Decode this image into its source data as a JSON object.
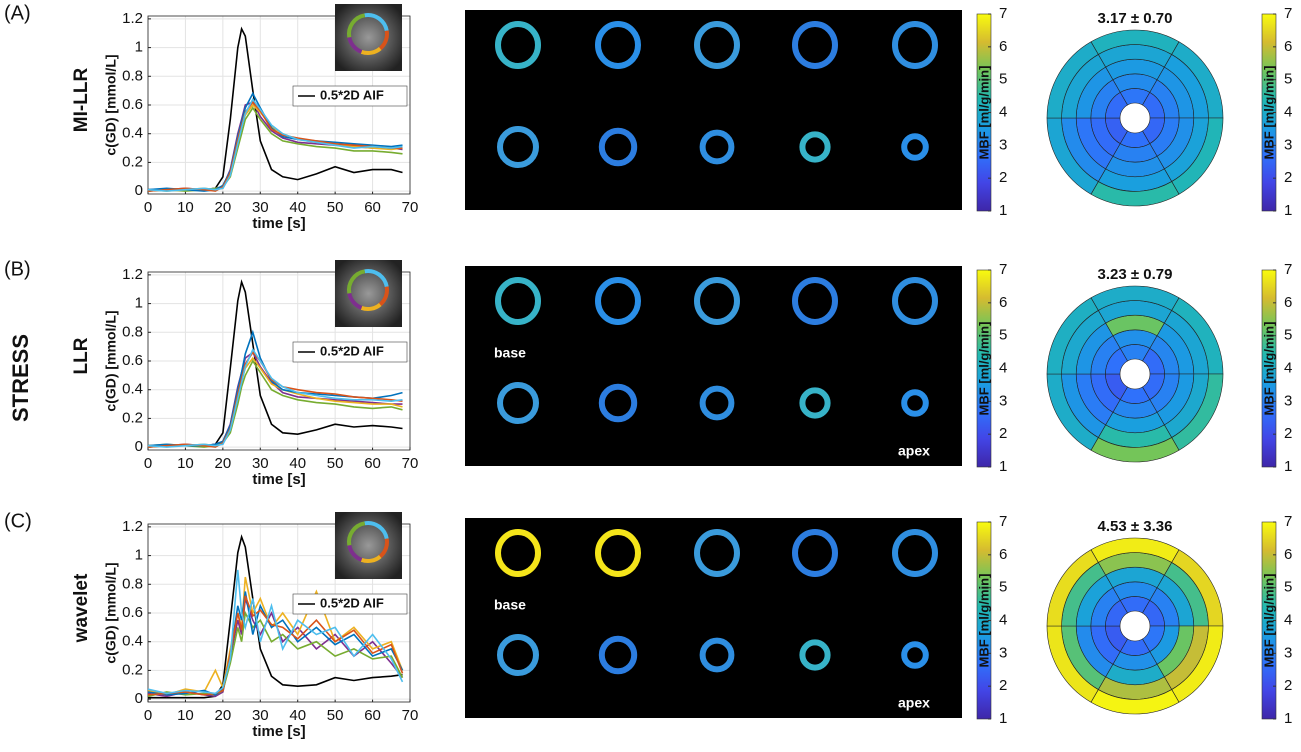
{
  "group_label": "STRESS",
  "colormap": [
    "#3e26a8",
    "#4245e6",
    "#2f72fb",
    "#1a9ee0",
    "#22b9b0",
    "#72c55a",
    "#d5bb30",
    "#f9fb0e"
  ],
  "chart_data": [
    {
      "type": "line",
      "panel_label": "(A)",
      "method_label": "MI-LLR",
      "xlabel": "time [s]",
      "ylabel": "c(GD) [mmol/L]",
      "xlim": [
        0,
        70
      ],
      "ylim": [
        -0.02,
        1.22
      ],
      "xticks": [
        0,
        10,
        20,
        30,
        40,
        50,
        60,
        70
      ],
      "yticks": [
        0,
        0.2,
        0.4,
        0.6,
        0.8,
        1,
        1.2
      ],
      "grid": true,
      "legend": "upper right",
      "x": [
        0,
        5,
        10,
        15,
        18,
        20,
        22,
        24,
        25,
        26,
        28,
        30,
        33,
        36,
        40,
        45,
        50,
        55,
        60,
        65,
        68
      ],
      "series": [
        {
          "name": "0.5*2D AIF",
          "color": "#000000",
          "values": [
            0.01,
            0.01,
            0.01,
            0.01,
            0.02,
            0.1,
            0.5,
            1.0,
            1.13,
            1.08,
            0.7,
            0.35,
            0.15,
            0.1,
            0.08,
            0.12,
            0.17,
            0.13,
            0.15,
            0.15,
            0.13
          ]
        },
        {
          "color": "#7e2f8e",
          "values": [
            0,
            0.01,
            0.02,
            0.01,
            0.02,
            0.03,
            0.15,
            0.4,
            0.5,
            0.6,
            0.62,
            0.52,
            0.42,
            0.37,
            0.34,
            0.33,
            0.32,
            0.31,
            0.3,
            0.3,
            0.29
          ]
        },
        {
          "color": "#edb120",
          "values": [
            0.01,
            0,
            0.01,
            0.02,
            0.01,
            0.02,
            0.12,
            0.35,
            0.45,
            0.53,
            0.6,
            0.55,
            0.45,
            0.4,
            0.36,
            0.34,
            0.33,
            0.31,
            0.3,
            0.29,
            0.3
          ]
        },
        {
          "color": "#77ac30",
          "values": [
            0,
            0.01,
            0,
            0.01,
            0.02,
            0.03,
            0.1,
            0.3,
            0.4,
            0.5,
            0.58,
            0.5,
            0.4,
            0.35,
            0.33,
            0.31,
            0.3,
            0.28,
            0.28,
            0.27,
            0.26
          ]
        },
        {
          "color": "#0072bd",
          "values": [
            0.01,
            0.02,
            0.01,
            0,
            0.01,
            0.04,
            0.14,
            0.38,
            0.48,
            0.58,
            0.68,
            0.58,
            0.44,
            0.38,
            0.36,
            0.35,
            0.34,
            0.33,
            0.32,
            0.31,
            0.32
          ]
        },
        {
          "color": "#d95319",
          "values": [
            0,
            0.01,
            0.02,
            0.01,
            0,
            0.03,
            0.13,
            0.36,
            0.46,
            0.55,
            0.62,
            0.56,
            0.43,
            0.39,
            0.37,
            0.35,
            0.33,
            0.32,
            0.31,
            0.3,
            0.3
          ]
        },
        {
          "color": "#4dbeee",
          "values": [
            0.01,
            0,
            0.01,
            0.02,
            0.01,
            0.02,
            0.11,
            0.33,
            0.44,
            0.54,
            0.64,
            0.57,
            0.46,
            0.4,
            0.36,
            0.34,
            0.32,
            0.3,
            0.31,
            0.3,
            0.31
          ]
        }
      ]
    },
    {
      "type": "bullseye",
      "title": "3.17 ± 0.70",
      "clim": [
        1,
        7
      ],
      "cticks": [
        1,
        2,
        3,
        4,
        5,
        6,
        7
      ],
      "clabel": "MBF [ml/g/min]",
      "values": [
        [
          2.8,
          3.2,
          3.5,
          3.8,
          4.2
        ],
        [
          2.6,
          3.0,
          3.4,
          3.6,
          4.0
        ],
        [
          2.5,
          2.9,
          3.3,
          3.7,
          4.3
        ],
        [
          2.7,
          3.0,
          3.3,
          3.6,
          4.5
        ],
        [
          2.4,
          2.6,
          2.8,
          3.2,
          3.8
        ],
        [
          2.6,
          3.0,
          3.4,
          3.8,
          4.0
        ]
      ]
    },
    {
      "type": "line",
      "panel_label": "(B)",
      "method_label": "LLR",
      "xlabel": "time [s]",
      "ylabel": "c(GD) [mmol/L]",
      "xlim": [
        0,
        70
      ],
      "ylim": [
        -0.02,
        1.22
      ],
      "xticks": [
        0,
        10,
        20,
        30,
        40,
        50,
        60,
        70
      ],
      "yticks": [
        0,
        0.2,
        0.4,
        0.6,
        0.8,
        1,
        1.2
      ],
      "grid": true,
      "legend": "upper right",
      "x": [
        0,
        5,
        10,
        15,
        18,
        20,
        22,
        24,
        25,
        26,
        28,
        30,
        33,
        36,
        40,
        45,
        50,
        55,
        60,
        65,
        68
      ],
      "series": [
        {
          "name": "0.5*2D AIF",
          "color": "#000000",
          "values": [
            0.01,
            0.01,
            0.01,
            0.01,
            0.02,
            0.1,
            0.55,
            1.02,
            1.15,
            1.08,
            0.72,
            0.36,
            0.16,
            0.1,
            0.09,
            0.12,
            0.16,
            0.14,
            0.15,
            0.14,
            0.13
          ]
        },
        {
          "color": "#7e2f8e",
          "values": [
            0,
            0.01,
            0.02,
            0.01,
            0.02,
            0.04,
            0.16,
            0.42,
            0.52,
            0.62,
            0.66,
            0.56,
            0.45,
            0.38,
            0.35,
            0.34,
            0.33,
            0.32,
            0.31,
            0.3,
            0.3
          ]
        },
        {
          "color": "#edb120",
          "values": [
            0.01,
            0.02,
            0.01,
            0.02,
            0.01,
            0.03,
            0.12,
            0.36,
            0.46,
            0.55,
            0.62,
            0.55,
            0.44,
            0.4,
            0.37,
            0.34,
            0.32,
            0.31,
            0.3,
            0.3,
            0.28
          ]
        },
        {
          "color": "#77ac30",
          "values": [
            0,
            0.01,
            0.01,
            0,
            0.01,
            0.03,
            0.1,
            0.3,
            0.42,
            0.5,
            0.6,
            0.52,
            0.4,
            0.36,
            0.33,
            0.31,
            0.3,
            0.28,
            0.27,
            0.28,
            0.26
          ]
        },
        {
          "color": "#0072bd",
          "values": [
            0.01,
            0.02,
            0.01,
            0.01,
            0.02,
            0.04,
            0.15,
            0.4,
            0.52,
            0.65,
            0.8,
            0.62,
            0.46,
            0.4,
            0.38,
            0.37,
            0.36,
            0.35,
            0.34,
            0.36,
            0.38
          ]
        },
        {
          "color": "#d95319",
          "values": [
            0,
            0.01,
            0.02,
            0.01,
            0,
            0.03,
            0.13,
            0.37,
            0.48,
            0.58,
            0.66,
            0.6,
            0.47,
            0.42,
            0.4,
            0.38,
            0.37,
            0.35,
            0.34,
            0.33,
            0.32
          ]
        },
        {
          "color": "#4dbeee",
          "values": [
            0.01,
            0,
            0.01,
            0.02,
            0.01,
            0.02,
            0.12,
            0.34,
            0.45,
            0.56,
            0.68,
            0.6,
            0.48,
            0.42,
            0.38,
            0.36,
            0.34,
            0.33,
            0.33,
            0.32,
            0.33
          ]
        }
      ]
    },
    {
      "type": "bullseye",
      "title": "3.23 ± 0.79",
      "clim": [
        1,
        7
      ],
      "cticks": [
        1,
        2,
        3,
        4,
        5,
        6,
        7
      ],
      "clabel": "MBF [ml/g/min]",
      "values": [
        [
          3.0,
          3.3,
          5.2,
          3.8,
          4.0
        ],
        [
          2.6,
          3.1,
          3.5,
          3.8,
          4.2
        ],
        [
          2.6,
          3.0,
          3.5,
          3.9,
          4.6
        ],
        [
          2.7,
          3.1,
          3.6,
          4.5,
          5.3
        ],
        [
          2.3,
          2.6,
          2.9,
          3.4,
          4.0
        ],
        [
          2.7,
          3.0,
          3.4,
          3.9,
          4.1
        ]
      ]
    },
    {
      "type": "line",
      "panel_label": "(C)",
      "method_label": "wavelet",
      "xlabel": "time [s]",
      "ylabel": "c(GD) [mmol/L]",
      "xlim": [
        0,
        70
      ],
      "ylim": [
        -0.02,
        1.22
      ],
      "xticks": [
        0,
        10,
        20,
        30,
        40,
        50,
        60,
        70
      ],
      "yticks": [
        0,
        0.2,
        0.4,
        0.6,
        0.8,
        1,
        1.2
      ],
      "grid": true,
      "legend": "upper right",
      "x": [
        0,
        5,
        10,
        15,
        18,
        20,
        22,
        24,
        25,
        26,
        28,
        30,
        33,
        36,
        40,
        45,
        50,
        55,
        60,
        65,
        68
      ],
      "series": [
        {
          "name": "0.5*2D AIF",
          "color": "#000000",
          "values": [
            0.01,
            0.01,
            0.01,
            0.01,
            0.02,
            0.1,
            0.55,
            1.02,
            1.13,
            1.06,
            0.7,
            0.35,
            0.16,
            0.1,
            0.09,
            0.1,
            0.15,
            0.13,
            0.15,
            0.16,
            0.17
          ]
        },
        {
          "color": "#7e2f8e",
          "values": [
            0.04,
            0.02,
            0.05,
            0.03,
            0.02,
            0.05,
            0.3,
            0.55,
            0.45,
            0.7,
            0.55,
            0.45,
            0.6,
            0.4,
            0.5,
            0.35,
            0.45,
            0.3,
            0.4,
            0.25,
            0.15
          ]
        },
        {
          "color": "#edb120",
          "values": [
            0.06,
            0.03,
            0.07,
            0.05,
            0.2,
            0.08,
            0.35,
            0.6,
            0.5,
            0.85,
            0.6,
            0.7,
            0.5,
            0.6,
            0.45,
            0.75,
            0.4,
            0.5,
            0.35,
            0.4,
            0.2
          ]
        },
        {
          "color": "#77ac30",
          "values": [
            0.02,
            0.05,
            0.03,
            0.04,
            0.03,
            0.06,
            0.25,
            0.5,
            0.4,
            0.6,
            0.5,
            0.55,
            0.4,
            0.45,
            0.35,
            0.4,
            0.3,
            0.35,
            0.28,
            0.3,
            0.15
          ]
        },
        {
          "color": "#0072bd",
          "values": [
            0.05,
            0.03,
            0.04,
            0.06,
            0.03,
            0.07,
            0.3,
            0.65,
            0.55,
            0.75,
            0.45,
            0.65,
            0.5,
            0.55,
            0.4,
            0.5,
            0.38,
            0.45,
            0.3,
            0.35,
            0.2
          ]
        },
        {
          "color": "#d95319",
          "values": [
            0.03,
            0.04,
            0.05,
            0.03,
            0.04,
            0.06,
            0.32,
            0.6,
            0.48,
            0.72,
            0.58,
            0.62,
            0.52,
            0.5,
            0.42,
            0.55,
            0.4,
            0.48,
            0.32,
            0.38,
            0.18
          ]
        },
        {
          "color": "#4dbeee",
          "values": [
            0.07,
            0.04,
            0.06,
            0.05,
            0.04,
            0.08,
            0.28,
            0.9,
            0.6,
            0.5,
            0.7,
            0.4,
            0.65,
            0.35,
            0.55,
            0.45,
            0.5,
            0.3,
            0.45,
            0.28,
            0.12
          ]
        }
      ]
    },
    {
      "type": "bullseye",
      "title": "4.53 ± 3.36",
      "clim": [
        1,
        7
      ],
      "cticks": [
        1,
        2,
        3,
        4,
        5,
        6,
        7
      ],
      "clabel": "MBF [ml/g/min]",
      "values": [
        [
          2.6,
          3.2,
          3.8,
          5.5,
          6.8
        ],
        [
          2.5,
          3.0,
          3.8,
          4.8,
          6.5
        ],
        [
          2.8,
          3.5,
          5.2,
          6.0,
          6.8
        ],
        [
          2.6,
          3.3,
          4.0,
          5.8,
          6.9
        ],
        [
          2.3,
          2.6,
          3.2,
          5.0,
          6.7
        ],
        [
          2.5,
          3.0,
          3.7,
          4.8,
          6.6
        ]
      ]
    }
  ],
  "slice_panels": [
    {
      "clim": [
        1,
        7
      ],
      "cticks": [
        1,
        2,
        3,
        4,
        5,
        6,
        7
      ],
      "clabel": "MBF [ml/g/min]"
    },
    {
      "top_label": "base",
      "bottom_label": "apex",
      "clim": [
        1,
        7
      ],
      "cticks": [
        1,
        2,
        3,
        4,
        5,
        6,
        7
      ],
      "clabel": "MBF [ml/g/min]"
    },
    {
      "top_label": "base",
      "bottom_label": "apex",
      "clim": [
        1,
        7
      ],
      "cticks": [
        1,
        2,
        3,
        4,
        5,
        6,
        7
      ],
      "clabel": "MBF [ml/g/min]"
    }
  ]
}
